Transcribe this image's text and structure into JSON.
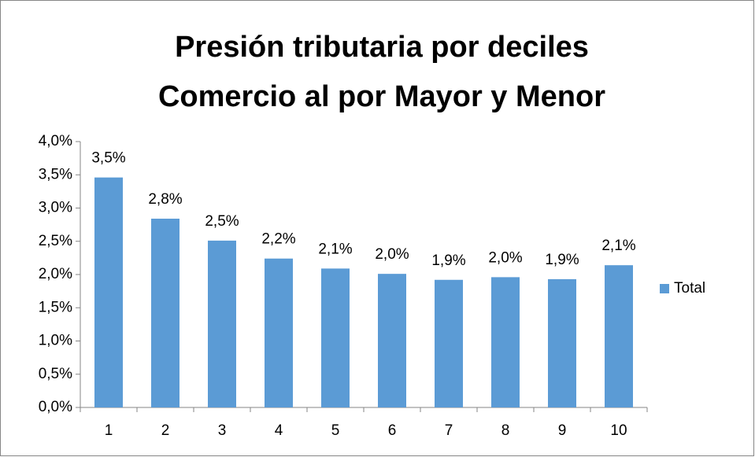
{
  "chart_data": {
    "type": "bar",
    "title": [
      "Presión tributaria por deciles",
      "Comercio al por Mayor y Menor"
    ],
    "categories": [
      "1",
      "2",
      "3",
      "4",
      "5",
      "6",
      "7",
      "8",
      "9",
      "10"
    ],
    "series": [
      {
        "name": "Total",
        "color": "#5b9bd5",
        "values": [
          3.46,
          2.84,
          2.51,
          2.24,
          2.09,
          2.01,
          1.92,
          1.96,
          1.93,
          2.14
        ],
        "value_labels": [
          "3,5%",
          "2,8%",
          "2,5%",
          "2,2%",
          "2,1%",
          "2,0%",
          "1,9%",
          "2,0%",
          "1,9%",
          "2,1%"
        ]
      }
    ],
    "ylim": [
      0,
      4
    ],
    "yticks": [
      {
        "value": 0,
        "label": "0,0%"
      },
      {
        "value": 0.5,
        "label": "0,5%"
      },
      {
        "value": 1,
        "label": "1,0%"
      },
      {
        "value": 1.5,
        "label": "1,5%"
      },
      {
        "value": 2,
        "label": "2,0%"
      },
      {
        "value": 2.5,
        "label": "2,5%"
      },
      {
        "value": 3,
        "label": "3,0%"
      },
      {
        "value": 3.5,
        "label": "3,5%"
      },
      {
        "value": 4,
        "label": "4,0%"
      }
    ],
    "grid": false,
    "legend": "right"
  }
}
